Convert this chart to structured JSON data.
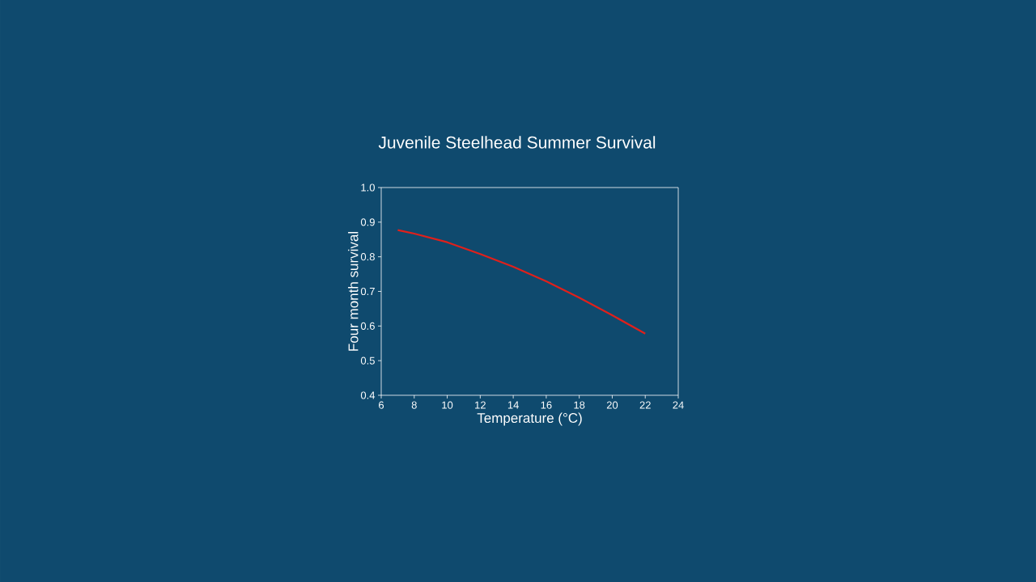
{
  "chart_data": {
    "type": "line",
    "title": "Juvenile Steelhead Summer Survival",
    "xlabel": "Temperature (°C)",
    "ylabel": "Four month survival",
    "x": [
      7,
      8,
      10,
      12,
      14,
      16,
      18,
      20,
      22
    ],
    "series": [
      {
        "color": "#e0201b",
        "values": [
          0.877,
          0.867,
          0.842,
          0.808,
          0.771,
          0.729,
          0.682,
          0.631,
          0.578
        ]
      }
    ],
    "xlim": [
      6,
      24
    ],
    "ylim": [
      0.4,
      1.0
    ],
    "xticks": [
      6,
      8,
      10,
      12,
      14,
      16,
      18,
      20,
      22,
      24
    ],
    "yticks": [
      {
        "value": 0.4,
        "label": "0.4"
      },
      {
        "value": 0.5,
        "label": "0.5"
      },
      {
        "value": 0.6,
        "label": "0.6"
      },
      {
        "value": 0.7,
        "label": "0.7"
      },
      {
        "value": 0.8,
        "label": "0.8"
      },
      {
        "value": 0.9,
        "label": "0.9"
      },
      {
        "value": 1.0,
        "label": "1.0"
      }
    ],
    "grid": false,
    "marker": "none",
    "line_style": "solid"
  }
}
